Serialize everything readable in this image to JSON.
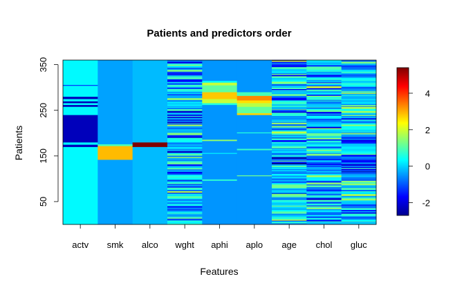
{
  "chart_data": {
    "type": "heatmap",
    "title": "Patients and predictors order",
    "xlabel": "Features",
    "ylabel": "Patients",
    "columns": [
      "actv",
      "smk",
      "alco",
      "wght",
      "aphi",
      "aplo",
      "age",
      "chol",
      "gluc"
    ],
    "y_ticks": [
      50,
      150,
      250,
      350
    ],
    "ylim": [
      0,
      360
    ],
    "colorbar": {
      "ticks": [
        -2,
        0,
        2,
        4
      ],
      "range": [
        -2.7,
        5.4
      ],
      "colors": [
        "#00008F",
        "#0000FF",
        "#007FFF",
        "#00FFFF",
        "#7FFF7F",
        "#FFFF00",
        "#FF7F00",
        "#FF0000",
        "#7F0000"
      ]
    },
    "bands": {
      "actv": [
        {
          "from": 0,
          "to": 170,
          "value": 0.3
        },
        {
          "from": 170,
          "to": 175,
          "value": -2.3
        },
        {
          "from": 175,
          "to": 180,
          "value": 0.3
        },
        {
          "from": 180,
          "to": 240,
          "value": -2.3
        },
        {
          "from": 240,
          "to": 258,
          "value": 0.3
        },
        {
          "from": 258,
          "to": 262,
          "value": -2.3
        },
        {
          "from": 262,
          "to": 266,
          "value": 0.3
        },
        {
          "from": 266,
          "to": 270,
          "value": -2.3
        },
        {
          "from": 270,
          "to": 275,
          "value": 0.3
        },
        {
          "from": 275,
          "to": 280,
          "value": -2.3
        },
        {
          "from": 280,
          "to": 304,
          "value": 0.3
        },
        {
          "from": 304,
          "to": 306,
          "value": -1.2
        },
        {
          "from": 306,
          "to": 360,
          "value": 0.3
        }
      ],
      "smk": [
        {
          "from": 0,
          "to": 142,
          "value": -0.4
        },
        {
          "from": 142,
          "to": 172,
          "value": 2.9
        },
        {
          "from": 172,
          "to": 176,
          "value": 0.9
        },
        {
          "from": 176,
          "to": 360,
          "value": -0.4
        }
      ],
      "alco": [
        {
          "from": 0,
          "to": 170,
          "value": -0.2
        },
        {
          "from": 170,
          "to": 180,
          "value": 5.4
        },
        {
          "from": 180,
          "to": 360,
          "value": -0.2
        }
      ],
      "aphi": [
        {
          "from": 0,
          "to": 96,
          "value": -0.5
        },
        {
          "from": 96,
          "to": 99,
          "value": 0.7
        },
        {
          "from": 99,
          "to": 155,
          "value": -0.5
        },
        {
          "from": 155,
          "to": 157,
          "value": 0.2
        },
        {
          "from": 157,
          "to": 183,
          "value": -0.5
        },
        {
          "from": 183,
          "to": 186,
          "value": 1.5
        },
        {
          "from": 186,
          "to": 262,
          "value": -0.5
        },
        {
          "from": 262,
          "to": 266,
          "value": 0.6
        },
        {
          "from": 266,
          "to": 275,
          "value": 1.9
        },
        {
          "from": 275,
          "to": 290,
          "value": 2.8
        },
        {
          "from": 290,
          "to": 305,
          "value": 1.1
        },
        {
          "from": 305,
          "to": 311,
          "value": 1.9
        },
        {
          "from": 311,
          "to": 315,
          "value": 0.3
        },
        {
          "from": 315,
          "to": 360,
          "value": -0.5
        }
      ],
      "aplo": [
        {
          "from": 0,
          "to": 106,
          "value": -0.5
        },
        {
          "from": 106,
          "to": 108,
          "value": 1.2
        },
        {
          "from": 108,
          "to": 163,
          "value": -0.5
        },
        {
          "from": 163,
          "to": 166,
          "value": 0.8
        },
        {
          "from": 166,
          "to": 200,
          "value": -0.5
        },
        {
          "from": 200,
          "to": 202,
          "value": 0.6
        },
        {
          "from": 202,
          "to": 240,
          "value": -0.5
        },
        {
          "from": 240,
          "to": 244,
          "value": 2.7
        },
        {
          "from": 244,
          "to": 258,
          "value": 1.1
        },
        {
          "from": 258,
          "to": 266,
          "value": 1.8
        },
        {
          "from": 266,
          "to": 272,
          "value": 2.6
        },
        {
          "from": 272,
          "to": 282,
          "value": 3.3
        },
        {
          "from": 282,
          "to": 290,
          "value": 0.9
        },
        {
          "from": 290,
          "to": 360,
          "value": -0.5
        }
      ]
    }
  }
}
